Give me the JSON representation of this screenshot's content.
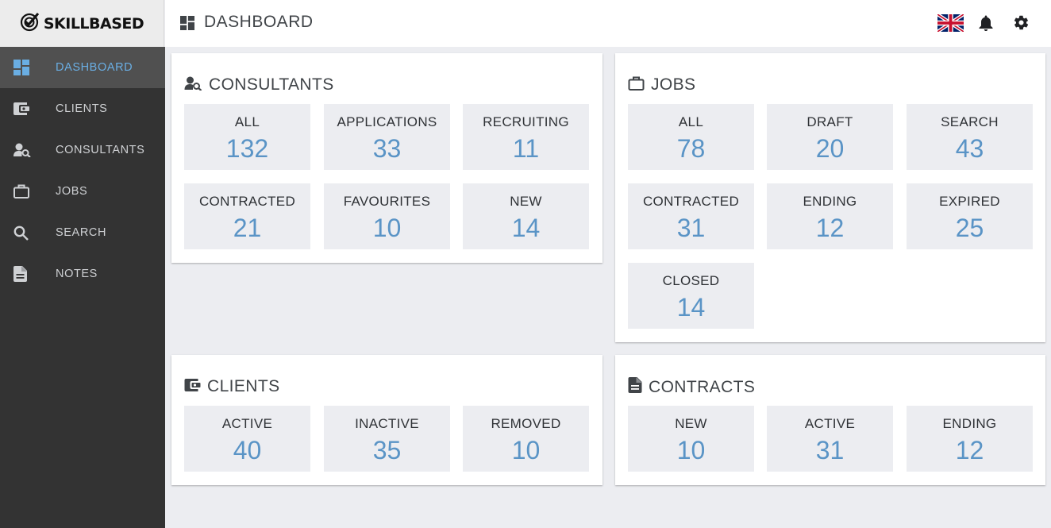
{
  "brand": {
    "name": "SKILLBASED"
  },
  "header": {
    "title": "DASHBOARD"
  },
  "icons": {
    "logo": "target-check-icon",
    "language": "uk-flag-icon",
    "notifications": "bell-icon",
    "settings": "gear-icon"
  },
  "colors": {
    "accent": "#6aaee3",
    "value": "#5a94c6",
    "sidebar_bg": "#333333",
    "sidebar_active_bg": "#505050",
    "tile_bg": "#ecedf1"
  },
  "sidebar": {
    "items": [
      {
        "label": "DASHBOARD",
        "icon": "dashboard-icon",
        "active": true
      },
      {
        "label": "CLIENTS",
        "icon": "wallet-icon",
        "active": false
      },
      {
        "label": "CONSULTANTS",
        "icon": "person-search-icon",
        "active": false
      },
      {
        "label": "JOBS",
        "icon": "briefcase-icon",
        "active": false
      },
      {
        "label": "SEARCH",
        "icon": "search-icon",
        "active": false
      },
      {
        "label": "NOTES",
        "icon": "document-icon",
        "active": false
      }
    ]
  },
  "panels": {
    "consultants": {
      "title": "CONSULTANTS",
      "tiles": [
        {
          "label": "ALL",
          "value": "132"
        },
        {
          "label": "APPLICATIONS",
          "value": "33"
        },
        {
          "label": "RECRUITING",
          "value": "11"
        },
        {
          "label": "CONTRACTED",
          "value": "21"
        },
        {
          "label": "FAVOURITES",
          "value": "10"
        },
        {
          "label": "NEW",
          "value": "14"
        }
      ]
    },
    "jobs": {
      "title": "JOBS",
      "tiles": [
        {
          "label": "ALL",
          "value": "78"
        },
        {
          "label": "DRAFT",
          "value": "20"
        },
        {
          "label": "SEARCH",
          "value": "43"
        },
        {
          "label": "CONTRACTED",
          "value": "31"
        },
        {
          "label": "ENDING",
          "value": "12"
        },
        {
          "label": "EXPIRED",
          "value": "25"
        },
        {
          "label": "CLOSED",
          "value": "14"
        }
      ]
    },
    "clients": {
      "title": "CLIENTS",
      "tiles": [
        {
          "label": "ACTIVE",
          "value": "40"
        },
        {
          "label": "INACTIVE",
          "value": "35"
        },
        {
          "label": "REMOVED",
          "value": "10"
        }
      ]
    },
    "contracts": {
      "title": "CONTRACTS",
      "tiles": [
        {
          "label": "NEW",
          "value": "10"
        },
        {
          "label": "ACTIVE",
          "value": "31"
        },
        {
          "label": "ENDING",
          "value": "12"
        }
      ]
    }
  }
}
